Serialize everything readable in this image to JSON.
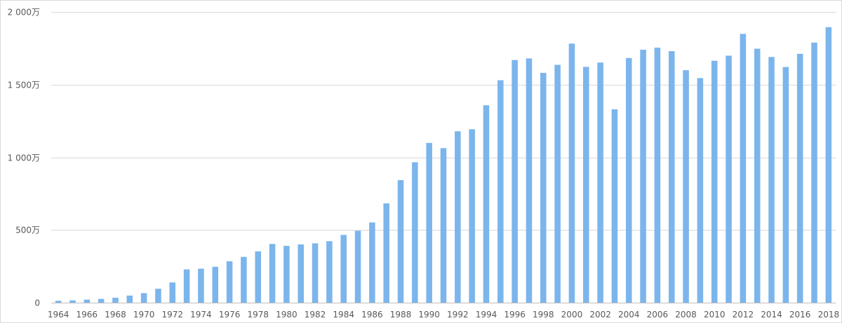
{
  "chart_data": {
    "type": "bar",
    "title": "",
    "xlabel": "",
    "ylabel": "",
    "ylim": [
      0,
      20000000
    ],
    "grid": true,
    "colors": {
      "bar": "#7cb5ec",
      "grid": "#d9d9d9",
      "text": "#595959"
    },
    "y_ticks": [
      {
        "value": 0,
        "label": "0"
      },
      {
        "value": 5000000,
        "label": "500万"
      },
      {
        "value": 10000000,
        "label": "1 000万"
      },
      {
        "value": 15000000,
        "label": "1 500万"
      },
      {
        "value": 20000000,
        "label": "2 000万"
      }
    ],
    "categories": [
      "1964",
      "1965",
      "1966",
      "1967",
      "1968",
      "1969",
      "1970",
      "1971",
      "1972",
      "1973",
      "1974",
      "1975",
      "1976",
      "1977",
      "1978",
      "1979",
      "1980",
      "1981",
      "1982",
      "1983",
      "1984",
      "1985",
      "1986",
      "1987",
      "1988",
      "1989",
      "1990",
      "1991",
      "1992",
      "1993",
      "1994",
      "1995",
      "1996",
      "1997",
      "1998",
      "1999",
      "2000",
      "2001",
      "2002",
      "2003",
      "2004",
      "2005",
      "2006",
      "2007",
      "2008",
      "2009",
      "2010",
      "2011",
      "2012",
      "2013",
      "2014",
      "2015",
      "2016",
      "2017",
      "2018"
    ],
    "x_tick_labels": [
      "1964",
      "",
      "1966",
      "",
      "1968",
      "",
      "1970",
      "",
      "1972",
      "",
      "1974",
      "",
      "1976",
      "",
      "1978",
      "",
      "1980",
      "",
      "1982",
      "",
      "1984",
      "",
      "1986",
      "",
      "1988",
      "",
      "1990",
      "",
      "1992",
      "",
      "1994",
      "",
      "1996",
      "",
      "1998",
      "",
      "2000",
      "",
      "2002",
      "",
      "2004",
      "",
      "2006",
      "",
      "2008",
      "",
      "2010",
      "",
      "2012",
      "",
      "2014",
      "",
      "2016",
      "",
      "2018"
    ],
    "values": [
      130000,
      160000,
      210000,
      260000,
      340000,
      490000,
      660000,
      960000,
      1390000,
      2290000,
      2340000,
      2470000,
      2850000,
      3150000,
      3530000,
      4040000,
      3910000,
      4010000,
      4080000,
      4230000,
      4660000,
      4950000,
      5520000,
      6830000,
      8430000,
      9660000,
      10990000,
      10630000,
      11790000,
      11930000,
      13580000,
      15300000,
      16690000,
      16800000,
      15810000,
      16360000,
      17820000,
      16220000,
      16520000,
      13300000,
      16830000,
      17400000,
      17540000,
      17300000,
      15990000,
      15450000,
      16640000,
      16990000,
      18490000,
      17470000,
      16900000,
      16210000,
      17120000,
      17890000,
      18950000
    ]
  }
}
